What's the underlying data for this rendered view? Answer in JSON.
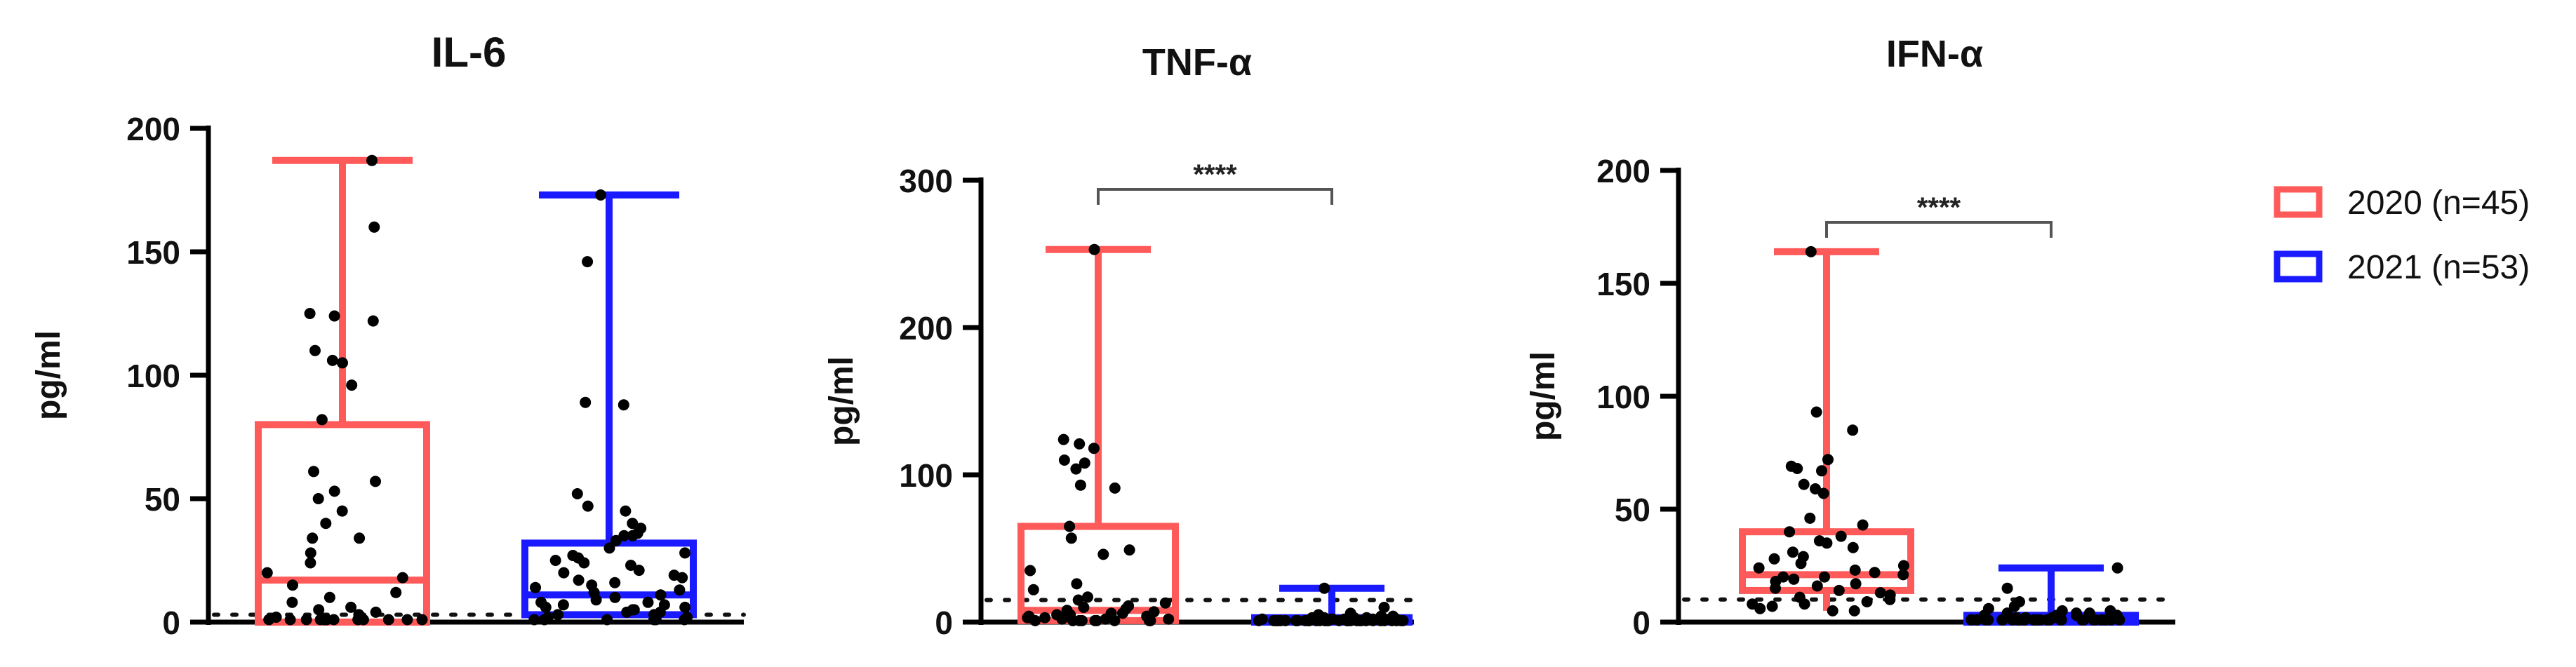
{
  "colors": {
    "series_2020": "#ff5a5a",
    "series_2021": "#1a1aff",
    "points": "#000000",
    "axis": "#000000",
    "bracket": "#555555"
  },
  "legend": {
    "items": [
      {
        "label": "2020 (n=45)",
        "color": "#ff5a5a"
      },
      {
        "label": "2021 (n=53)",
        "color": "#1a1aff"
      }
    ],
    "placement": "right"
  },
  "chart_data": [
    {
      "type": "box",
      "title": "IL-6",
      "ylabel": "pg/ml",
      "xlabel": "",
      "ylim": [
        0,
        200
      ],
      "yticks": [
        0,
        50,
        100,
        150,
        200
      ],
      "detection_limit": 3,
      "grid": false,
      "significance": "",
      "series": [
        {
          "name": "2020 (n=45)",
          "min": 0,
          "q1": 0,
          "median": 17,
          "q3": 80,
          "max": 187,
          "points": [
            187,
            160,
            125,
            124,
            122,
            110,
            106,
            105,
            96,
            82,
            61,
            57,
            53,
            50,
            45,
            40,
            34,
            34,
            28,
            24,
            20,
            18,
            15,
            12,
            10,
            8,
            6,
            5,
            4,
            3,
            2,
            1,
            1,
            1,
            1,
            1,
            1,
            1,
            1,
            1,
            1,
            1,
            1,
            1,
            1
          ]
        },
        {
          "name": "2021 (n=53)",
          "min": 0,
          "q1": 3,
          "median": 11,
          "q3": 32,
          "max": 173,
          "points": [
            173,
            146,
            89,
            88,
            52,
            47,
            45,
            40,
            38,
            36,
            35,
            35,
            33,
            30,
            28,
            27,
            26,
            25,
            24,
            23,
            21,
            20,
            19,
            18,
            17,
            16,
            15,
            14,
            13,
            12,
            11,
            10,
            9,
            8,
            8,
            7,
            7,
            6,
            6,
            5,
            5,
            4,
            4,
            3,
            3,
            2,
            2,
            1,
            1,
            1,
            1,
            1,
            1
          ]
        }
      ]
    },
    {
      "type": "box",
      "title": "TNF-α",
      "ylabel": "pg/ml",
      "xlabel": "",
      "ylim": [
        0,
        300
      ],
      "yticks": [
        0,
        100,
        200,
        300
      ],
      "detection_limit": 15,
      "grid": false,
      "significance": "****",
      "series": [
        {
          "name": "2020 (n=45)",
          "min": 0,
          "q1": 1,
          "median": 8,
          "q3": 65,
          "max": 253,
          "points": [
            253,
            124,
            121,
            118,
            110,
            108,
            104,
            93,
            91,
            65,
            57,
            49,
            46,
            35,
            26,
            22,
            17,
            15,
            13,
            11,
            10,
            9,
            8,
            7,
            6,
            6,
            5,
            5,
            4,
            4,
            3,
            3,
            3,
            2,
            2,
            2,
            1,
            1,
            1,
            1,
            1,
            1,
            1,
            1,
            1
          ]
        },
        {
          "name": "2021 (n=53)",
          "min": 0,
          "q1": 0,
          "median": 1,
          "q3": 3,
          "max": 23,
          "points": [
            23,
            10,
            6,
            5,
            4,
            4,
            3,
            3,
            3,
            3,
            2,
            2,
            2,
            2,
            2,
            2,
            2,
            2,
            2,
            1,
            1,
            1,
            1,
            1,
            1,
            1,
            1,
            1,
            1,
            1,
            1,
            1,
            1,
            1,
            1,
            1,
            1,
            1,
            1,
            1,
            1,
            1,
            1,
            1,
            1,
            1,
            1,
            1,
            1,
            1,
            1,
            1,
            1
          ]
        }
      ]
    },
    {
      "type": "box",
      "title": "IFN-α",
      "ylabel": "pg/ml",
      "xlabel": "",
      "ylim": [
        0,
        200
      ],
      "yticks": [
        0,
        50,
        100,
        150,
        200
      ],
      "detection_limit": 10,
      "grid": false,
      "significance": "****",
      "series": [
        {
          "name": "2020 (n=45)",
          "min": 5,
          "q1": 14,
          "median": 21,
          "q3": 40,
          "max": 164,
          "points": [
            164,
            93,
            85,
            72,
            69,
            68,
            67,
            61,
            59,
            57,
            46,
            43,
            40,
            38,
            36,
            35,
            33,
            31,
            29,
            28,
            26,
            25,
            24,
            23,
            22,
            21,
            20,
            20,
            19,
            18,
            17,
            16,
            15,
            14,
            13,
            12,
            11,
            10,
            9,
            8,
            8,
            7,
            6,
            5,
            5
          ]
        },
        {
          "name": "2021 (n=53)",
          "min": 0,
          "q1": 0,
          "median": 1,
          "q3": 3,
          "max": 24,
          "points": [
            24,
            15,
            9,
            7,
            6,
            5,
            5,
            4,
            4,
            4,
            3,
            3,
            3,
            3,
            2,
            2,
            2,
            2,
            2,
            2,
            2,
            1,
            1,
            1,
            1,
            1,
            1,
            1,
            1,
            1,
            1,
            1,
            1,
            1,
            1,
            1,
            1,
            1,
            1,
            1,
            1,
            1,
            1,
            1,
            1,
            1,
            1,
            1,
            1,
            1,
            1,
            1,
            1
          ]
        }
      ]
    }
  ]
}
